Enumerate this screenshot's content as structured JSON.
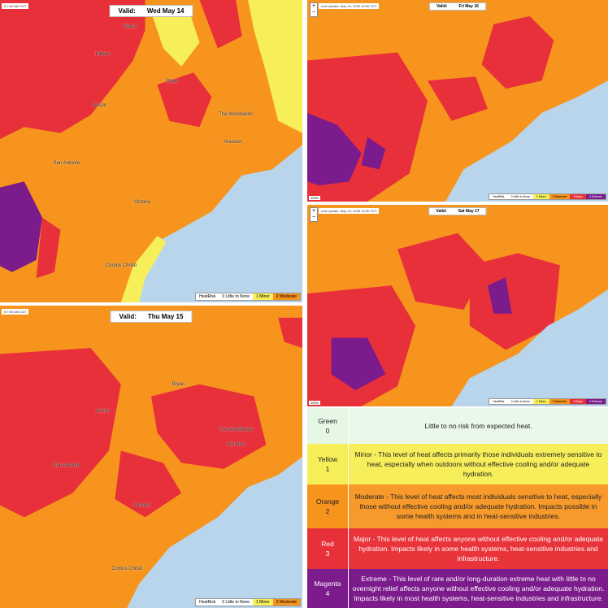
{
  "maps": [
    {
      "valid_label": "Valid:",
      "date": "Wed May 14",
      "timestamp": "5:7:60 AM CDT",
      "cities": [
        "Waco",
        "Killeen",
        "Bryan",
        "Austin",
        "The Woodlands",
        "Houston",
        "San Antonio",
        "Victoria",
        "Corpus Christi"
      ],
      "legend": {
        "title": "HeatRisk",
        "items": [
          {
            "label": "0 Little to None",
            "color": "#ffffff"
          },
          {
            "label": "1 Minor",
            "color": "#f6ef5a"
          },
          {
            "label": "2 Moderate",
            "color": "#f7941d"
          }
        ]
      }
    },
    {
      "valid_label": "Valid:",
      "date": "Thu May 15",
      "timestamp": "5:7:60 AM CDT",
      "cities": [
        "Bryan",
        "Austin",
        "The Woodlands",
        "Houston",
        "San Antonio",
        "Victoria",
        "Corpus Christi"
      ],
      "legend": {
        "title": "HeatRisk",
        "items": [
          {
            "label": "0 Little to None",
            "color": "#ffffff"
          },
          {
            "label": "1 Minor",
            "color": "#f6ef5a"
          },
          {
            "label": "2 Moderate",
            "color": "#f7941d"
          }
        ]
      }
    },
    {
      "valid_label": "Valid:",
      "date": "Fri May 16",
      "timestamp": "Last Update: May 13, 2025 10:00 CDT",
      "zoom_level": "100%",
      "cities": [],
      "legend": {
        "title": "HeatRisk",
        "items": [
          {
            "label": "0 Little to None",
            "color": "#ffffff"
          },
          {
            "label": "1 Minor",
            "color": "#f6ef5a"
          },
          {
            "label": "2 Moderate",
            "color": "#f7941d"
          },
          {
            "label": "3 Major",
            "color": "#e8303a"
          },
          {
            "label": "4 Extreme",
            "color": "#7b1b8c"
          }
        ]
      }
    },
    {
      "valid_label": "Valid:",
      "date": "Sat May 17",
      "timestamp": "Last Update: May 13, 2025 10:00 CDT",
      "zoom_level": "100%",
      "cities": [],
      "legend": {
        "title": "HeatRisk",
        "items": [
          {
            "label": "0 Little to None",
            "color": "#ffffff"
          },
          {
            "label": "1 Minor",
            "color": "#f6ef5a"
          },
          {
            "label": "2 Moderate",
            "color": "#f7941d"
          },
          {
            "label": "3 Major",
            "color": "#e8303a"
          },
          {
            "label": "4 Extreme",
            "color": "#7b1b8c"
          }
        ]
      }
    }
  ],
  "table": {
    "rows": [
      {
        "level": "Green",
        "number": "0",
        "description": "Little to no risk from expected heat."
      },
      {
        "level": "Yellow",
        "number": "1",
        "description": "Minor - This level of heat affects primarily those individuals extremely sensitive to heat, especially when outdoors without effective cooling and/or adequate hydration."
      },
      {
        "level": "Orange",
        "number": "2",
        "description": "Moderate - This level of heat affects most individuals sensitive to heat, especially those without effective cooling and/or adequate hydration. Impacts possible in some health systems and in heat-sensitive industries."
      },
      {
        "level": "Red",
        "number": "3",
        "description": "Major - This level of heat affects anyone without effective cooling and/or adequate hydration. Impacts likely in some health systems, heat-sensitive industries and infrastructure."
      },
      {
        "level": "Magenta",
        "number": "4",
        "description": "Extreme - This level of rare and/or long-duration extreme heat with little to no overnight relief affects anyone without effective cooling and/or adequate hydration. Impacts likely in most health systems, heat-sensitive industries and infrastructure."
      }
    ]
  }
}
